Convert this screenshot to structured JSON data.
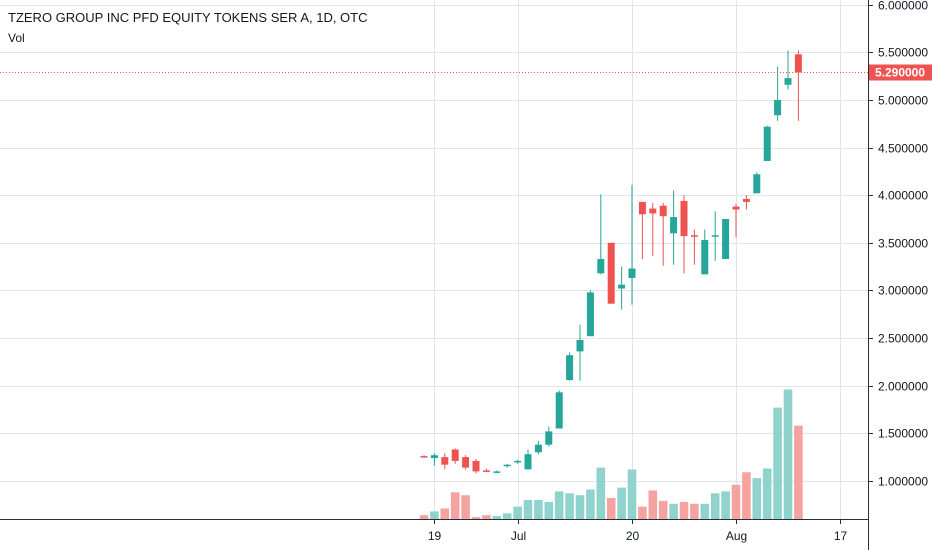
{
  "chart_data": {
    "type": "candlestick",
    "title": "TZERO GROUP INC PFD EQUITY TOKENS SER A, 1D, OTC",
    "volume_label": "Vol",
    "last_price_label": "5.290000",
    "last_price": 5.29,
    "ylim": [
      0.6,
      6.05
    ],
    "y_ticks": [
      {
        "value": 1.0,
        "label": "1.000000"
      },
      {
        "value": 1.5,
        "label": "1.500000"
      },
      {
        "value": 2.0,
        "label": "2.000000"
      },
      {
        "value": 2.5,
        "label": "2.500000"
      },
      {
        "value": 3.0,
        "label": "3.000000"
      },
      {
        "value": 3.5,
        "label": "3.500000"
      },
      {
        "value": 4.0,
        "label": "4.000000"
      },
      {
        "value": 4.5,
        "label": "4.500000"
      },
      {
        "value": 5.0,
        "label": "5.000000"
      },
      {
        "value": 5.5,
        "label": "5.500000"
      },
      {
        "value": 6.0,
        "label": "6.000000"
      }
    ],
    "x_ticks": [
      {
        "index": 1,
        "label": "19"
      },
      {
        "index": 9,
        "label": "Jul"
      },
      {
        "index": 20,
        "label": "20"
      },
      {
        "index": 30,
        "label": "Aug"
      },
      {
        "index": 40,
        "label": "17"
      }
    ],
    "x_start_index": -1,
    "x_end_index": 43,
    "colors": {
      "up": "#26a69a",
      "down": "#ef5350",
      "up_volume": "#8fd3cc",
      "down_volume": "#f5a3a1",
      "grid": "#e0e3eb",
      "text": "#131722",
      "axis": "#2a2e39"
    },
    "candles": [
      {
        "o": 1.26,
        "h": 1.27,
        "l": 1.25,
        "c": 1.25,
        "v": 0.64
      },
      {
        "o": 1.24,
        "h": 1.29,
        "l": 1.16,
        "c": 1.27,
        "v": 0.68
      },
      {
        "o": 1.25,
        "h": 1.29,
        "l": 1.12,
        "c": 1.17,
        "v": 0.71
      },
      {
        "o": 1.33,
        "h": 1.34,
        "l": 1.18,
        "c": 1.21,
        "v": 0.88
      },
      {
        "o": 1.25,
        "h": 1.27,
        "l": 1.12,
        "c": 1.14,
        "v": 0.85
      },
      {
        "o": 1.21,
        "h": 1.23,
        "l": 1.08,
        "c": 1.1,
        "v": 0.62
      },
      {
        "o": 1.11,
        "h": 1.13,
        "l": 1.09,
        "c": 1.1,
        "v": 0.64
      },
      {
        "o": 1.09,
        "h": 1.11,
        "l": 1.08,
        "c": 1.1,
        "v": 0.63
      },
      {
        "o": 1.16,
        "h": 1.18,
        "l": 1.14,
        "c": 1.17,
        "v": 0.66
      },
      {
        "o": 1.2,
        "h": 1.22,
        "l": 1.18,
        "c": 1.21,
        "v": 0.73
      },
      {
        "o": 1.12,
        "h": 1.33,
        "l": 1.12,
        "c": 1.28,
        "v": 0.8
      },
      {
        "o": 1.3,
        "h": 1.42,
        "l": 1.28,
        "c": 1.38,
        "v": 0.8
      },
      {
        "o": 1.38,
        "h": 1.57,
        "l": 1.36,
        "c": 1.52,
        "v": 0.78
      },
      {
        "o": 1.55,
        "h": 1.95,
        "l": 1.55,
        "c": 1.93,
        "v": 0.89
      },
      {
        "o": 2.06,
        "h": 2.35,
        "l": 2.05,
        "c": 2.32,
        "v": 0.87
      },
      {
        "o": 2.36,
        "h": 2.64,
        "l": 2.05,
        "c": 2.48,
        "v": 0.85
      },
      {
        "o": 2.52,
        "h": 3.0,
        "l": 2.52,
        "c": 2.98,
        "v": 0.91
      },
      {
        "o": 3.18,
        "h": 4.01,
        "l": 3.17,
        "c": 3.33,
        "v": 1.14
      },
      {
        "o": 3.5,
        "h": 3.5,
        "l": 2.86,
        "c": 2.86,
        "v": 0.82
      },
      {
        "o": 3.02,
        "h": 3.25,
        "l": 2.8,
        "c": 3.06,
        "v": 0.93
      },
      {
        "o": 3.13,
        "h": 4.11,
        "l": 2.85,
        "c": 3.23,
        "v": 1.12
      },
      {
        "o": 3.93,
        "h": 3.93,
        "l": 3.33,
        "c": 3.8,
        "v": 0.73
      },
      {
        "o": 3.86,
        "h": 3.92,
        "l": 3.36,
        "c": 3.81,
        "v": 0.9
      },
      {
        "o": 3.89,
        "h": 3.92,
        "l": 3.26,
        "c": 3.78,
        "v": 0.79
      },
      {
        "o": 3.6,
        "h": 4.05,
        "l": 3.27,
        "c": 3.77,
        "v": 0.76
      },
      {
        "o": 3.94,
        "h": 4.0,
        "l": 3.18,
        "c": 3.57,
        "v": 0.78
      },
      {
        "o": 3.58,
        "h": 3.64,
        "l": 3.27,
        "c": 3.57,
        "v": 0.76
      },
      {
        "o": 3.17,
        "h": 3.64,
        "l": 3.17,
        "c": 3.53,
        "v": 0.76
      },
      {
        "o": 3.57,
        "h": 3.83,
        "l": 3.31,
        "c": 3.58,
        "v": 0.87
      },
      {
        "o": 3.33,
        "h": 3.75,
        "l": 3.33,
        "c": 3.75,
        "v": 0.89
      },
      {
        "o": 3.88,
        "h": 3.91,
        "l": 3.56,
        "c": 3.85,
        "v": 0.96
      },
      {
        "o": 3.96,
        "h": 4.0,
        "l": 3.85,
        "c": 3.93,
        "v": 1.09
      },
      {
        "o": 4.02,
        "h": 4.24,
        "l": 4.02,
        "c": 4.22,
        "v": 1.03
      },
      {
        "o": 4.36,
        "h": 4.73,
        "l": 4.36,
        "c": 4.72,
        "v": 1.13
      },
      {
        "o": 4.84,
        "h": 5.35,
        "l": 4.78,
        "c": 5.0,
        "v": 1.77
      },
      {
        "o": 5.16,
        "h": 5.52,
        "l": 5.11,
        "c": 5.23,
        "v": 1.96
      },
      {
        "o": 5.48,
        "h": 5.52,
        "l": 4.78,
        "c": 5.29,
        "v": 1.58
      }
    ]
  }
}
